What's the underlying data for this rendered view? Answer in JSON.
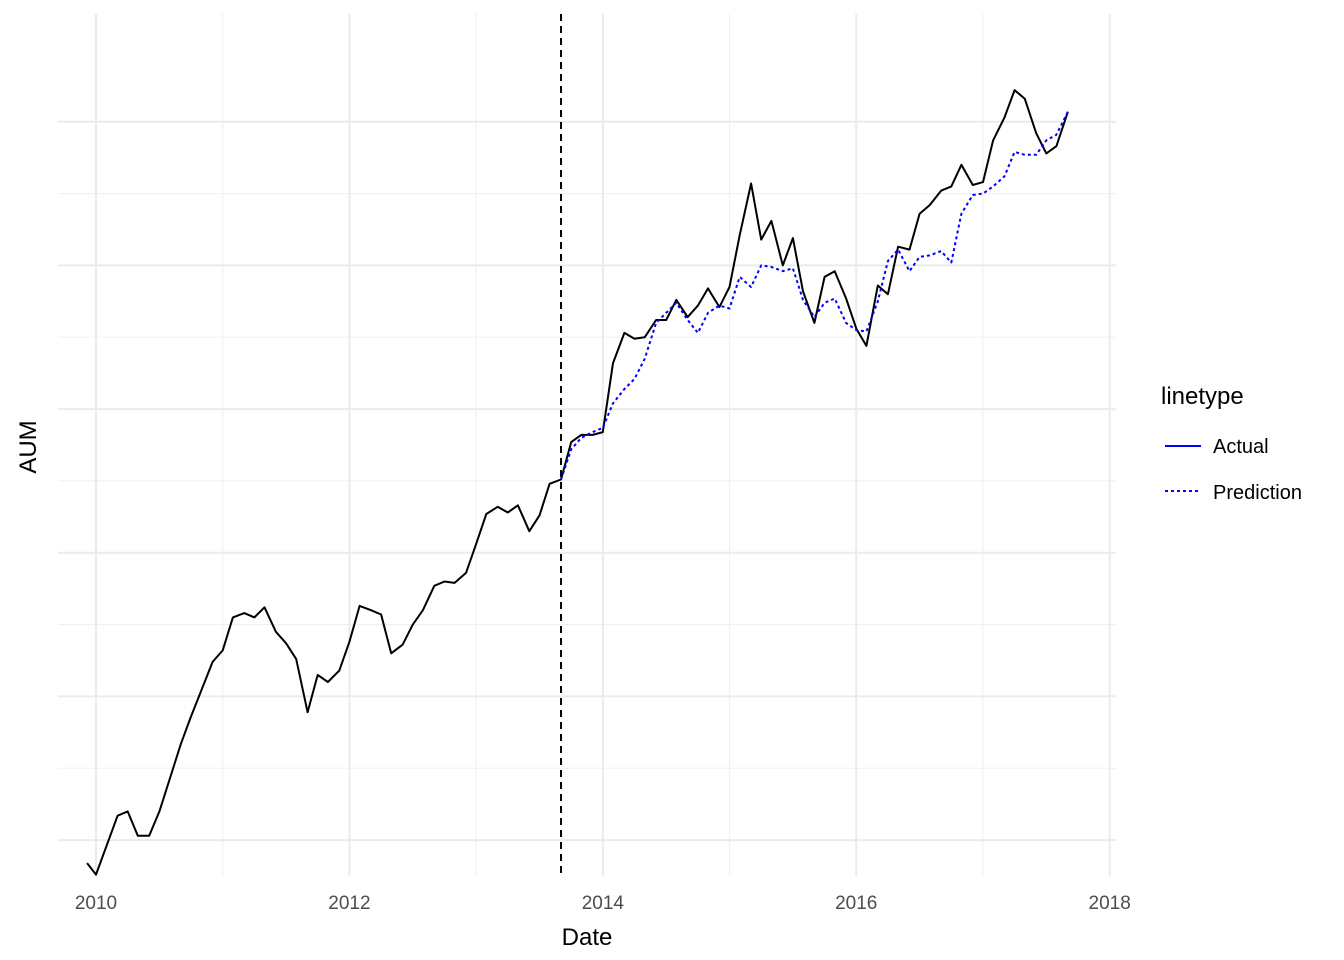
{
  "chart_data": {
    "type": "line",
    "xlabel": "Date",
    "ylabel": "AUM",
    "x_ticks": [
      "2010",
      "2012",
      "2014",
      "2016",
      "2018"
    ],
    "xlim": [
      2009.7,
      2018.05
    ],
    "ylim": [
      -0.25,
      5.75
    ],
    "y_gridlines": [
      0,
      1,
      2,
      3,
      4,
      5
    ],
    "y_tick_labels_shown": false,
    "grid": true,
    "vline": {
      "x": 2013.67,
      "style": "dashed",
      "color": "#000000"
    },
    "legend": {
      "title": "linetype",
      "position": "right",
      "entries": [
        {
          "label": "Actual",
          "color": "#0000ff",
          "dash": "solid"
        },
        {
          "label": "Prediction",
          "color": "#0000ff",
          "dash": "dotted"
        }
      ]
    },
    "series": [
      {
        "color": "#000000",
        "dash": "solid",
        "points": [
          [
            2009.93,
            -0.16
          ],
          [
            2010.0,
            -0.24
          ],
          [
            2010.17,
            0.17
          ],
          [
            2010.25,
            0.2
          ],
          [
            2010.33,
            0.03
          ],
          [
            2010.42,
            0.03
          ],
          [
            2010.5,
            0.2
          ],
          [
            2010.58,
            0.42
          ],
          [
            2010.67,
            0.67
          ],
          [
            2010.75,
            0.86
          ],
          [
            2010.83,
            1.04
          ],
          [
            2010.92,
            1.24
          ],
          [
            2011.0,
            1.32
          ],
          [
            2011.08,
            1.55
          ],
          [
            2011.17,
            1.58
          ],
          [
            2011.25,
            1.55
          ],
          [
            2011.33,
            1.62
          ],
          [
            2011.42,
            1.45
          ],
          [
            2011.5,
            1.37
          ],
          [
            2011.58,
            1.26
          ],
          [
            2011.67,
            0.89
          ],
          [
            2011.75,
            1.15
          ],
          [
            2011.83,
            1.1
          ],
          [
            2011.92,
            1.18
          ],
          [
            2012.0,
            1.38
          ],
          [
            2012.08,
            1.63
          ],
          [
            2012.17,
            1.6
          ],
          [
            2012.25,
            1.57
          ],
          [
            2012.33,
            1.3
          ],
          [
            2012.42,
            1.36
          ],
          [
            2012.5,
            1.5
          ],
          [
            2012.58,
            1.6
          ],
          [
            2012.67,
            1.77
          ],
          [
            2012.75,
            1.8
          ],
          [
            2012.83,
            1.79
          ],
          [
            2012.92,
            1.86
          ],
          [
            2013.0,
            2.06
          ],
          [
            2013.08,
            2.27
          ],
          [
            2013.17,
            2.32
          ],
          [
            2013.25,
            2.28
          ],
          [
            2013.33,
            2.33
          ],
          [
            2013.42,
            2.15
          ],
          [
            2013.5,
            2.26
          ],
          [
            2013.58,
            2.48
          ],
          [
            2013.67,
            2.51
          ],
          [
            2013.75,
            2.77
          ],
          [
            2013.83,
            2.82
          ],
          [
            2013.92,
            2.82
          ],
          [
            2014.0,
            2.84
          ],
          [
            2014.08,
            3.32
          ],
          [
            2014.17,
            3.53
          ],
          [
            2014.25,
            3.49
          ],
          [
            2014.33,
            3.5
          ],
          [
            2014.42,
            3.62
          ],
          [
            2014.5,
            3.62
          ],
          [
            2014.58,
            3.76
          ],
          [
            2014.67,
            3.64
          ],
          [
            2014.75,
            3.72
          ],
          [
            2014.83,
            3.84
          ],
          [
            2014.92,
            3.71
          ],
          [
            2015.0,
            3.85
          ],
          [
            2015.08,
            4.21
          ],
          [
            2015.17,
            4.57
          ],
          [
            2015.25,
            4.18
          ],
          [
            2015.33,
            4.31
          ],
          [
            2015.42,
            4.0
          ],
          [
            2015.5,
            4.19
          ],
          [
            2015.58,
            3.82
          ],
          [
            2015.67,
            3.6
          ],
          [
            2015.75,
            3.92
          ],
          [
            2015.83,
            3.96
          ],
          [
            2015.92,
            3.77
          ],
          [
            2016.0,
            3.56
          ],
          [
            2016.08,
            3.44
          ],
          [
            2016.17,
            3.86
          ],
          [
            2016.25,
            3.8
          ],
          [
            2016.33,
            4.13
          ],
          [
            2016.42,
            4.11
          ],
          [
            2016.5,
            4.36
          ],
          [
            2016.58,
            4.42
          ],
          [
            2016.67,
            4.52
          ],
          [
            2016.75,
            4.55
          ],
          [
            2016.83,
            4.7
          ],
          [
            2016.92,
            4.56
          ],
          [
            2017.0,
            4.58
          ],
          [
            2017.08,
            4.87
          ],
          [
            2017.17,
            5.03
          ],
          [
            2017.25,
            5.22
          ],
          [
            2017.33,
            5.16
          ],
          [
            2017.42,
            4.92
          ],
          [
            2017.5,
            4.78
          ],
          [
            2017.58,
            4.83
          ],
          [
            2017.67,
            5.07
          ]
        ]
      },
      {
        "color": "#0000ff",
        "dash": "dotted",
        "points": [
          [
            2013.67,
            2.51
          ],
          [
            2013.75,
            2.72
          ],
          [
            2013.83,
            2.8
          ],
          [
            2013.92,
            2.84
          ],
          [
            2014.0,
            2.87
          ],
          [
            2014.08,
            3.04
          ],
          [
            2014.17,
            3.14
          ],
          [
            2014.25,
            3.21
          ],
          [
            2014.33,
            3.35
          ],
          [
            2014.42,
            3.6
          ],
          [
            2014.5,
            3.67
          ],
          [
            2014.58,
            3.74
          ],
          [
            2014.67,
            3.62
          ],
          [
            2014.75,
            3.53
          ],
          [
            2014.83,
            3.67
          ],
          [
            2014.92,
            3.72
          ],
          [
            2015.0,
            3.7
          ],
          [
            2015.08,
            3.92
          ],
          [
            2015.17,
            3.85
          ],
          [
            2015.25,
            4.0
          ],
          [
            2015.33,
            3.99
          ],
          [
            2015.42,
            3.96
          ],
          [
            2015.5,
            3.98
          ],
          [
            2015.58,
            3.76
          ],
          [
            2015.67,
            3.64
          ],
          [
            2015.75,
            3.74
          ],
          [
            2015.83,
            3.77
          ],
          [
            2015.92,
            3.6
          ],
          [
            2016.0,
            3.55
          ],
          [
            2016.08,
            3.54
          ],
          [
            2016.17,
            3.75
          ],
          [
            2016.25,
            4.03
          ],
          [
            2016.33,
            4.11
          ],
          [
            2016.42,
            3.96
          ],
          [
            2016.5,
            4.06
          ],
          [
            2016.58,
            4.07
          ],
          [
            2016.67,
            4.1
          ],
          [
            2016.75,
            4.02
          ],
          [
            2016.83,
            4.36
          ],
          [
            2016.92,
            4.49
          ],
          [
            2017.0,
            4.5
          ],
          [
            2017.08,
            4.55
          ],
          [
            2017.17,
            4.62
          ],
          [
            2017.25,
            4.79
          ],
          [
            2017.33,
            4.77
          ],
          [
            2017.42,
            4.77
          ],
          [
            2017.5,
            4.87
          ],
          [
            2017.58,
            4.91
          ],
          [
            2017.67,
            5.07
          ]
        ]
      }
    ]
  }
}
